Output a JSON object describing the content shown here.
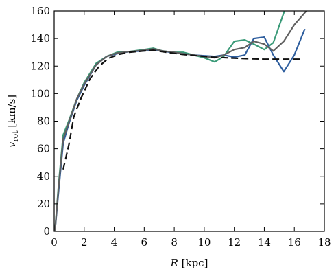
{
  "chart_data": {
    "type": "line",
    "xlabel": "R [kpc]",
    "ylabel": "v_rot [km/s]",
    "xlabel_parts": {
      "var": "R",
      "unit": "[kpc]"
    },
    "ylabel_parts": {
      "var": "v",
      "sub": "rot",
      "unit": "[km/s]"
    },
    "xlim": [
      0,
      18
    ],
    "ylim": [
      0,
      160
    ],
    "xticks": [
      0,
      2,
      4,
      6,
      8,
      10,
      12,
      14,
      16,
      18
    ],
    "yticks": [
      0,
      20,
      40,
      60,
      80,
      100,
      120,
      140,
      160
    ],
    "grid": false,
    "legend": "none",
    "series": [
      {
        "color": "#3a9a78",
        "style": "solid",
        "points": [
          [
            0.05,
            0
          ],
          [
            0.3,
            35
          ],
          [
            0.6,
            70
          ],
          [
            1.0,
            81
          ],
          [
            1.5,
            96
          ],
          [
            2.0,
            108
          ],
          [
            2.8,
            122
          ],
          [
            3.5,
            127
          ],
          [
            4.2,
            130
          ],
          [
            5.0,
            130.5
          ],
          [
            6.0,
            132
          ],
          [
            6.6,
            133
          ],
          [
            7.2,
            131
          ],
          [
            8.0,
            130
          ],
          [
            8.6,
            130
          ],
          [
            9.3,
            128
          ],
          [
            10.0,
            126
          ],
          [
            10.7,
            123
          ],
          [
            11.3,
            127
          ],
          [
            12.0,
            138
          ],
          [
            12.7,
            139
          ],
          [
            13.3,
            136
          ],
          [
            14.0,
            132
          ],
          [
            14.6,
            137
          ],
          [
            15.5,
            165
          ]
        ]
      },
      {
        "color": "#2e5e9e",
        "style": "solid",
        "points": [
          [
            0.05,
            0
          ],
          [
            0.3,
            30
          ],
          [
            0.6,
            64
          ],
          [
            1.0,
            79
          ],
          [
            1.5,
            95
          ],
          [
            2.0,
            106
          ],
          [
            2.8,
            121
          ],
          [
            3.5,
            127
          ],
          [
            4.2,
            129
          ],
          [
            5.0,
            130.5
          ],
          [
            6.0,
            131
          ],
          [
            6.6,
            132
          ],
          [
            7.2,
            131
          ],
          [
            8.0,
            129.5
          ],
          [
            8.6,
            129
          ],
          [
            9.3,
            128
          ],
          [
            10.0,
            127.5
          ],
          [
            10.7,
            127
          ],
          [
            11.3,
            128
          ],
          [
            12.0,
            126.5
          ],
          [
            12.7,
            128
          ],
          [
            13.3,
            140
          ],
          [
            14.0,
            141
          ],
          [
            14.6,
            128
          ],
          [
            15.3,
            116
          ],
          [
            16.0,
            128
          ],
          [
            16.7,
            147
          ]
        ]
      },
      {
        "color": "#606060",
        "style": "solid",
        "points": [
          [
            0.05,
            0
          ],
          [
            0.3,
            33
          ],
          [
            0.6,
            67
          ],
          [
            1.0,
            80
          ],
          [
            1.5,
            96
          ],
          [
            2.0,
            107
          ],
          [
            2.8,
            121
          ],
          [
            3.5,
            127
          ],
          [
            4.2,
            129.5
          ],
          [
            5.0,
            130.5
          ],
          [
            6.0,
            131.5
          ],
          [
            6.6,
            132.5
          ],
          [
            7.2,
            131
          ],
          [
            8.0,
            130
          ],
          [
            8.6,
            129
          ],
          [
            9.3,
            128
          ],
          [
            10.0,
            127
          ],
          [
            10.7,
            126
          ],
          [
            11.3,
            128
          ],
          [
            12.0,
            132
          ],
          [
            12.7,
            133.5
          ],
          [
            13.3,
            138
          ],
          [
            14.0,
            136
          ],
          [
            14.6,
            131
          ],
          [
            15.3,
            138
          ],
          [
            16.0,
            150
          ],
          [
            16.8,
            160
          ]
        ]
      },
      {
        "color": "#111111",
        "style": "dashed",
        "points": [
          [
            0.6,
            45
          ],
          [
            1.0,
            64
          ],
          [
            1.3,
            83
          ],
          [
            1.8,
            97
          ],
          [
            2.4,
            111
          ],
          [
            3.0,
            120
          ],
          [
            3.6,
            125.5
          ],
          [
            4.3,
            128.5
          ],
          [
            5.0,
            130
          ],
          [
            6.0,
            131
          ],
          [
            6.6,
            131.5
          ],
          [
            7.5,
            130
          ],
          [
            8.5,
            128.5
          ],
          [
            9.5,
            127.5
          ],
          [
            10.5,
            126.5
          ],
          [
            11.5,
            126
          ],
          [
            12.5,
            125.5
          ],
          [
            14.0,
            125
          ],
          [
            15.5,
            125
          ],
          [
            16.5,
            125
          ]
        ]
      }
    ]
  }
}
